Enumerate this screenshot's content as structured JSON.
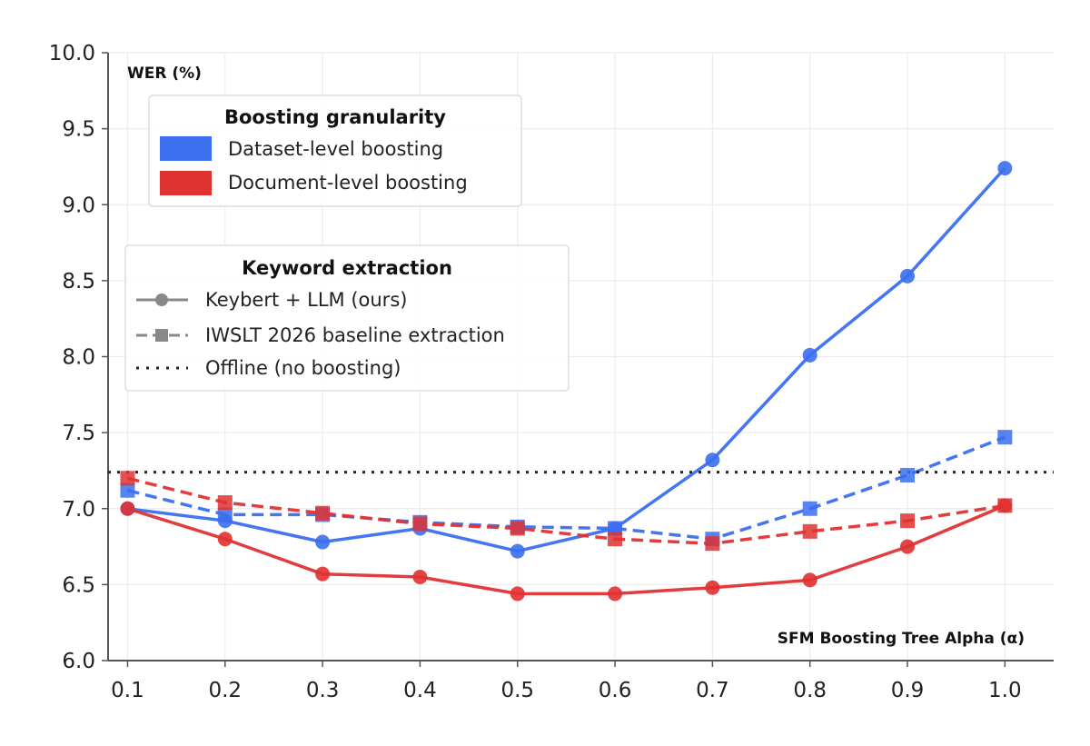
{
  "chart_data": {
    "type": "line",
    "xlabel": "SFM Boosting Tree Alpha (α)",
    "ylabel": "WER (%)",
    "x": [
      0.1,
      0.2,
      0.3,
      0.4,
      0.5,
      0.6,
      0.7,
      0.8,
      0.9,
      1.0
    ],
    "x_ticks": [
      "0.1",
      "0.2",
      "0.3",
      "0.4",
      "0.5",
      "0.6",
      "0.7",
      "0.8",
      "0.9",
      "1.0"
    ],
    "y_ticks": [
      "6.0",
      "6.5",
      "7.0",
      "7.5",
      "8.0",
      "8.5",
      "9.0",
      "9.5",
      "10.0"
    ],
    "xlim": [
      0.08,
      1.05
    ],
    "ylim": [
      6.0,
      10.0
    ],
    "grid": true,
    "series": [
      {
        "granularity": "dataset",
        "extraction": "keybert",
        "color": "#3b6ff0",
        "style": "solid",
        "marker": "circle",
        "values": [
          7.0,
          6.92,
          6.78,
          6.87,
          6.72,
          6.87,
          7.32,
          8.01,
          8.53,
          9.24
        ]
      },
      {
        "granularity": "dataset",
        "extraction": "baseline",
        "color": "#3b6ff0",
        "style": "dashed",
        "marker": "square",
        "values": [
          7.12,
          6.96,
          6.96,
          6.91,
          6.88,
          6.87,
          6.8,
          7.0,
          7.22,
          7.47
        ]
      },
      {
        "granularity": "document",
        "extraction": "keybert",
        "color": "#e03131",
        "style": "solid",
        "marker": "circle",
        "values": [
          7.0,
          6.8,
          6.57,
          6.55,
          6.44,
          6.44,
          6.48,
          6.53,
          6.75,
          7.02
        ]
      },
      {
        "granularity": "document",
        "extraction": "baseline",
        "color": "#e03131",
        "style": "dashed",
        "marker": "square",
        "values": [
          7.2,
          7.04,
          6.97,
          6.9,
          6.87,
          6.8,
          6.77,
          6.85,
          6.92,
          7.02
        ]
      }
    ],
    "offline_wer": 7.24,
    "legend_granularity": {
      "title": "Boosting granularity",
      "entries": [
        {
          "label": "Dataset-level boosting",
          "color": "#3b6ff0"
        },
        {
          "label": "Document-level boosting",
          "color": "#e03131"
        }
      ]
    },
    "legend_extraction": {
      "title": "Keyword extraction",
      "entries": [
        {
          "label": "Keybert + LLM (ours)",
          "style": "solid",
          "marker": "circle"
        },
        {
          "label": "IWSLT 2026 baseline extraction",
          "style": "dashed",
          "marker": "square"
        },
        {
          "label": "Offline (no boosting)",
          "style": "dotted",
          "marker": "none"
        }
      ]
    },
    "legend_placement": "upper-left"
  }
}
